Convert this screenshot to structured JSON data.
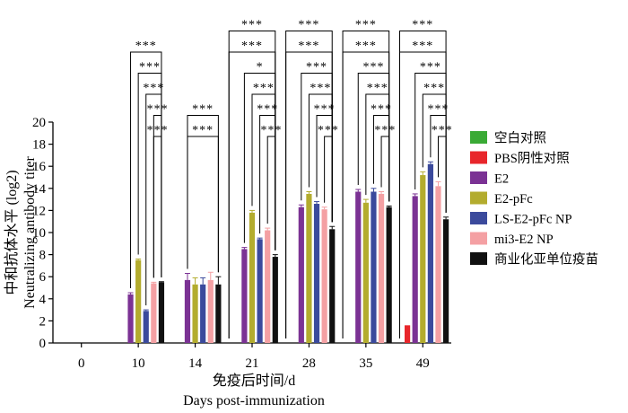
{
  "chart_data": {
    "type": "bar",
    "xlabel_zh": "免疫后时间/d",
    "xlabel_en": "Days post-immunization",
    "ylabel_zh": "中和抗体水平 (log2)",
    "ylabel_en": "Neutralizing antibody titer",
    "categories": [
      "0",
      "10",
      "14",
      "21",
      "28",
      "35",
      "49"
    ],
    "ylim": [
      0,
      20
    ],
    "yticks": [
      0,
      2,
      4,
      6,
      8,
      10,
      12,
      14,
      16,
      18,
      20
    ],
    "series": [
      {
        "name": "空白对照",
        "color": "#3aaa35",
        "values": [
          0,
          0,
          0,
          0,
          0,
          0,
          0
        ],
        "errors": [
          0,
          0,
          0,
          0,
          0,
          0,
          0
        ]
      },
      {
        "name": "PBS阴性对照",
        "color": "#e8262b",
        "values": [
          0,
          0,
          0,
          0,
          0,
          0,
          1.6
        ],
        "errors": [
          0,
          0,
          0,
          0,
          0,
          0,
          0
        ]
      },
      {
        "name": "E2",
        "color": "#7b3294",
        "values": [
          0,
          4.4,
          5.7,
          8.5,
          12.3,
          13.7,
          13.3
        ],
        "errors": [
          0,
          0.15,
          0.6,
          0.15,
          0.2,
          0.2,
          0.2
        ]
      },
      {
        "name": "E2-pFc",
        "color": "#b3ac2e",
        "values": [
          0,
          7.5,
          5.3,
          11.8,
          13.5,
          12.7,
          15.2
        ],
        "errors": [
          0,
          0.1,
          0.6,
          0.2,
          0.2,
          0.3,
          0.3
        ]
      },
      {
        "name": "LS-E2-pFc NP",
        "color": "#3b4a9c",
        "values": [
          0,
          2.9,
          5.3,
          9.4,
          12.6,
          13.7,
          16.2
        ],
        "errors": [
          0,
          0.1,
          0.6,
          0.1,
          0.2,
          0.3,
          0.2
        ]
      },
      {
        "name": "mi3-E2 NP",
        "color": "#f4a0a3",
        "values": [
          0,
          5.4,
          5.7,
          10.2,
          12.1,
          13.5,
          14.2
        ],
        "errors": [
          0,
          0.1,
          0.7,
          0.2,
          0.2,
          0.2,
          0.4
        ]
      },
      {
        "name": "商业化亚单位疫苗",
        "color": "#111111",
        "values": [
          0,
          5.5,
          5.3,
          7.8,
          10.3,
          12.3,
          11.2
        ],
        "errors": [
          0,
          0.05,
          0.7,
          0.2,
          0.25,
          0.1,
          0.2
        ]
      }
    ],
    "significance": {
      "10": [
        {
          "from": "E2",
          "to": "商业化亚单位疫苗",
          "label": "***"
        },
        {
          "from": "E2-pFc",
          "to": "商业化亚单位疫苗",
          "label": "***"
        },
        {
          "from": "LS-E2-pFc NP",
          "to": "商业化亚单位疫苗",
          "label": "***"
        },
        {
          "from": "mi3-E2 NP",
          "to": "商业化亚单位疫苗",
          "label": "***"
        },
        {
          "from": "mi3-E2 NP",
          "to": "商业化亚单位疫苗",
          "label": "***"
        }
      ],
      "14": [
        {
          "from": "E2",
          "to": "商业化亚单位疫苗",
          "label": "***"
        },
        {
          "from": "E2",
          "to": "商业化亚单位疫苗",
          "label": "***"
        }
      ],
      "21": [
        {
          "from": "空白对照",
          "to": "商业化亚单位疫苗",
          "label": "***"
        },
        {
          "from": "空白对照",
          "to": "商业化亚单位疫苗",
          "label": "***"
        },
        {
          "from": "E2",
          "to": "商业化亚单位疫苗",
          "label": "*"
        },
        {
          "from": "E2-pFc",
          "to": "商业化亚单位疫苗",
          "label": "***"
        },
        {
          "from": "LS-E2-pFc NP",
          "to": "商业化亚单位疫苗",
          "label": "***"
        },
        {
          "from": "mi3-E2 NP",
          "to": "商业化亚单位疫苗",
          "label": "***"
        }
      ],
      "28": [
        {
          "from": "空白对照",
          "to": "商业化亚单位疫苗",
          "label": "***"
        },
        {
          "from": "空白对照",
          "to": "商业化亚单位疫苗",
          "label": "***"
        },
        {
          "from": "E2",
          "to": "商业化亚单位疫苗",
          "label": "***"
        },
        {
          "from": "E2-pFc",
          "to": "商业化亚单位疫苗",
          "label": "***"
        },
        {
          "from": "LS-E2-pFc NP",
          "to": "商业化亚单位疫苗",
          "label": "***"
        },
        {
          "from": "mi3-E2 NP",
          "to": "商业化亚单位疫苗",
          "label": "***"
        }
      ],
      "35": [
        {
          "from": "空白对照",
          "to": "商业化亚单位疫苗",
          "label": "***"
        },
        {
          "from": "空白对照",
          "to": "商业化亚单位疫苗",
          "label": "***"
        },
        {
          "from": "E2",
          "to": "商业化亚单位疫苗",
          "label": "***"
        },
        {
          "from": "E2-pFc",
          "to": "商业化亚单位疫苗",
          "label": "***"
        },
        {
          "from": "LS-E2-pFc NP",
          "to": "商业化亚单位疫苗",
          "label": "***"
        },
        {
          "from": "mi3-E2 NP",
          "to": "商业化亚单位疫苗",
          "label": "***"
        }
      ],
      "49": [
        {
          "from": "空白对照",
          "to": "商业化亚单位疫苗",
          "label": "***"
        },
        {
          "from": "空白对照",
          "to": "商业化亚单位疫苗",
          "label": "***"
        },
        {
          "from": "E2",
          "to": "商业化亚单位疫苗",
          "label": "***"
        },
        {
          "from": "E2-pFc",
          "to": "商业化亚单位疫苗",
          "label": "***"
        },
        {
          "from": "LS-E2-pFc NP",
          "to": "商业化亚单位疫苗",
          "label": "***"
        },
        {
          "from": "mi3-E2 NP",
          "to": "商业化亚单位疫苗",
          "label": "***"
        }
      ]
    },
    "legend_position": "right"
  }
}
